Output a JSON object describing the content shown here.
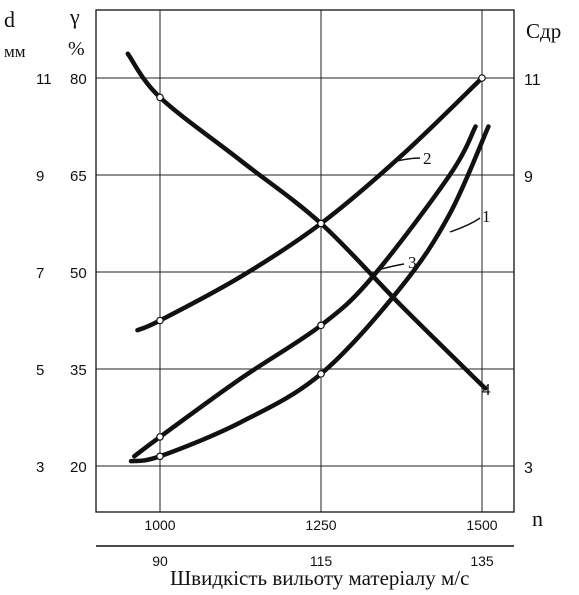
{
  "chart_data": {
    "type": "line",
    "x_axis_top": {
      "label": "n",
      "ticks": [
        "1000",
        "1250",
        "1500"
      ],
      "range": [
        1000,
        1500
      ]
    },
    "x_axis_bottom": {
      "label": "Швидкість вильоту матеріалу м/с",
      "ticks": [
        "90",
        "115",
        "135"
      ]
    },
    "y_axis_left_d": {
      "label": "d",
      "unit": "мм",
      "ticks": [
        "3",
        "5",
        "7",
        "9",
        "11"
      ],
      "range": [
        3,
        11
      ]
    },
    "y_axis_left_gamma": {
      "label": "γ",
      "unit": "%",
      "ticks": [
        "20",
        "35",
        "50",
        "65",
        "80"
      ],
      "range": [
        20,
        80
      ]
    },
    "y_axis_right": {
      "label": "Cдр",
      "ticks": [
        "3",
        "9",
        "11"
      ],
      "tick_values": [
        3,
        9,
        11
      ]
    },
    "grid": true,
    "series": [
      {
        "name": "1",
        "points": [
          [
            955,
            3.1
          ],
          [
            1000,
            3.2
          ],
          [
            1125,
            3.9
          ],
          [
            1250,
            4.9
          ],
          [
            1375,
            6.7
          ],
          [
            1450,
            8.2
          ],
          [
            1510,
            10.0
          ]
        ]
      },
      {
        "name": "2",
        "points": [
          [
            965,
            5.8
          ],
          [
            1000,
            6.0
          ],
          [
            1125,
            6.9
          ],
          [
            1250,
            8.0
          ],
          [
            1375,
            9.4
          ],
          [
            1500,
            11.0
          ]
        ]
      },
      {
        "name": "3",
        "points": [
          [
            960,
            3.2
          ],
          [
            1000,
            3.6
          ],
          [
            1125,
            4.8
          ],
          [
            1250,
            5.9
          ],
          [
            1330,
            6.9
          ],
          [
            1450,
            9.0
          ],
          [
            1490,
            10.0
          ]
        ]
      },
      {
        "name": "4",
        "points": [
          [
            950,
            11.5
          ],
          [
            1000,
            10.6
          ],
          [
            1125,
            9.3
          ],
          [
            1250,
            8.0
          ],
          [
            1375,
            6.3
          ],
          [
            1505,
            4.6
          ]
        ]
      }
    ],
    "curve_labels": [
      "1",
      "2",
      "3",
      "4"
    ]
  }
}
